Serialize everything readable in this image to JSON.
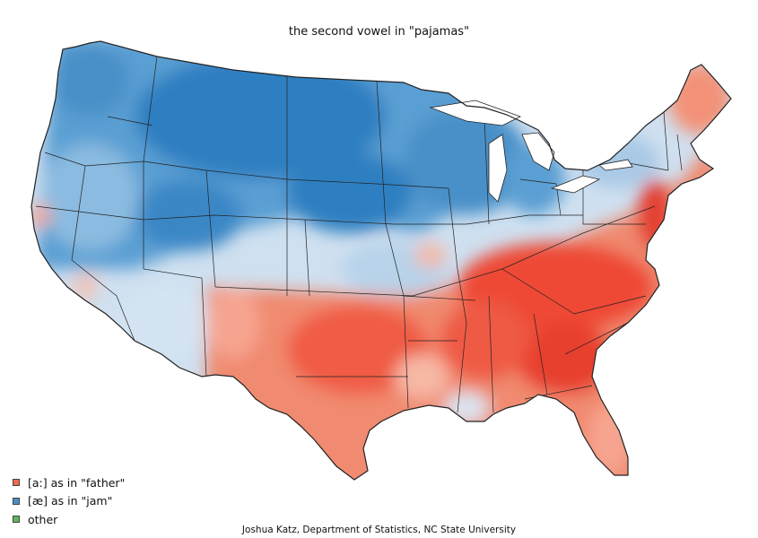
{
  "title": "the second vowel in \"pajamas\"",
  "legend": [
    {
      "label": "[a:] as in \"father\"",
      "color": "#ee6a50"
    },
    {
      "label": "[æ] as in \"jam\"",
      "color": "#4a90c8"
    },
    {
      "label": "other",
      "color": "#5cb85c"
    }
  ],
  "credit": "Joshua Katz, Department of Statistics, NC State University",
  "colors": {
    "father_strong": "#ee4a36",
    "father_light": "#f6a490",
    "jam_strong": "#2e7fc1",
    "jam_light": "#cfe0f0",
    "border": "#222222"
  }
}
